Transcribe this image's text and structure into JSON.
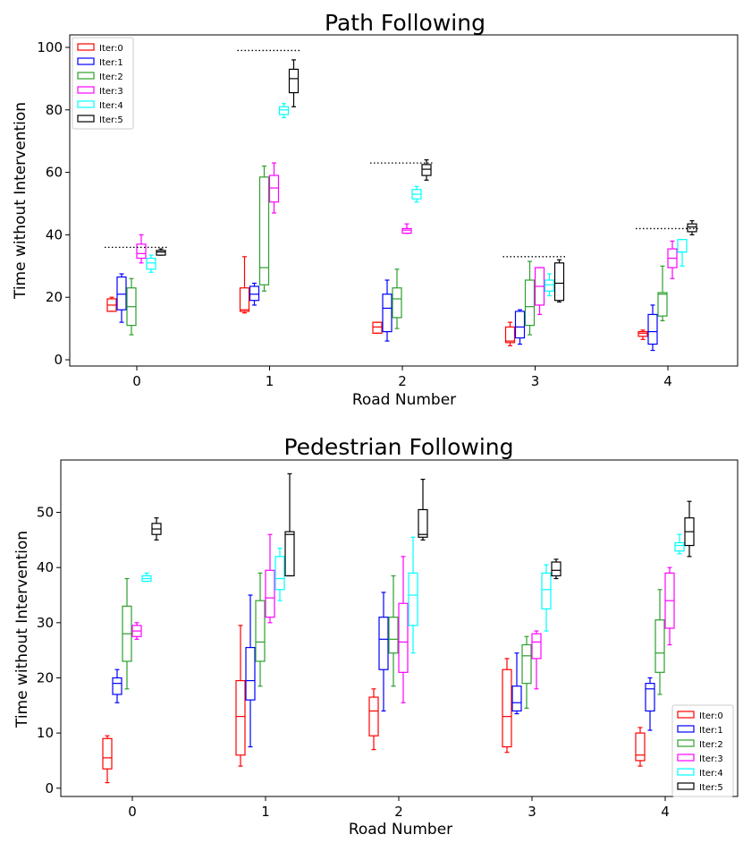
{
  "chart_data": [
    {
      "type": "box",
      "title": "Path Following",
      "xlabel": "Road Number",
      "ylabel": "Time without Intervention",
      "categories": [
        "0",
        "1",
        "2",
        "3",
        "4"
      ],
      "yticks": [
        0,
        20,
        40,
        60,
        80,
        100
      ],
      "ylim": [
        -2,
        104
      ],
      "legend_position": "upper-left",
      "series": [
        {
          "name": "Iter:0",
          "color": "#ff0000",
          "boxes": [
            {
              "min": 15.5,
              "q1": 15.5,
              "median": 17.5,
              "q3": 19.5,
              "max": 20
            },
            {
              "min": 15,
              "q1": 15.5,
              "median": 16,
              "q3": 23,
              "max": 33
            },
            {
              "min": 8.5,
              "q1": 8.5,
              "median": 10.5,
              "q3": 12,
              "max": 12
            },
            {
              "min": 4.5,
              "q1": 5.5,
              "median": 6,
              "q3": 10.5,
              "max": 12
            },
            {
              "min": 6.5,
              "q1": 7.5,
              "median": 8.5,
              "q3": 9,
              "max": 9.5
            }
          ]
        },
        {
          "name": "Iter:1",
          "color": "#0000ff",
          "boxes": [
            {
              "min": 12,
              "q1": 16,
              "median": 21,
              "q3": 26.5,
              "max": 27.5
            },
            {
              "min": 17.5,
              "q1": 19,
              "median": 21,
              "q3": 23.5,
              "max": 24.5
            },
            {
              "min": 6,
              "q1": 9,
              "median": 16.5,
              "q3": 21,
              "max": 25.5
            },
            {
              "min": 5,
              "q1": 7,
              "median": 10.5,
              "q3": 15.5,
              "max": 16
            },
            {
              "min": 3,
              "q1": 5,
              "median": 9,
              "q3": 14.5,
              "max": 17.5
            }
          ]
        },
        {
          "name": "Iter:2",
          "color": "#2ca02c",
          "boxes": [
            {
              "min": 8,
              "q1": 11,
              "median": 17,
              "q3": 23,
              "max": 26
            },
            {
              "min": 22,
              "q1": 24,
              "median": 29.5,
              "q3": 58.5,
              "max": 62
            },
            {
              "min": 10,
              "q1": 13.5,
              "median": 19.5,
              "q3": 23,
              "max": 29
            },
            {
              "min": 8,
              "q1": 11,
              "median": 17,
              "q3": 25.5,
              "max": 31.5
            },
            {
              "min": 12.5,
              "q1": 14,
              "median": 21,
              "q3": 21.5,
              "max": 30
            }
          ]
        },
        {
          "name": "Iter:3",
          "color": "#ff00ff",
          "boxes": [
            {
              "min": 31,
              "q1": 32.5,
              "median": 34,
              "q3": 37,
              "max": 40
            },
            {
              "min": 47,
              "q1": 50.5,
              "median": 55,
              "q3": 59,
              "max": 63
            },
            {
              "min": 40.5,
              "q1": 40.5,
              "median": 41.5,
              "q3": 42,
              "max": 43.5
            },
            {
              "min": 14.5,
              "q1": 17.5,
              "median": 23.5,
              "q3": 29.5,
              "max": 29.5
            },
            {
              "min": 26,
              "q1": 29.5,
              "median": 32.5,
              "q3": 35.5,
              "max": 38
            }
          ]
        },
        {
          "name": "Iter:4",
          "color": "#00ffff",
          "boxes": [
            {
              "min": 28,
              "q1": 29,
              "median": 31,
              "q3": 32.5,
              "max": 33.5
            },
            {
              "min": 77.5,
              "q1": 78.5,
              "median": 80,
              "q3": 81,
              "max": 82
            },
            {
              "min": 50.5,
              "q1": 51.5,
              "median": 53,
              "q3": 54.5,
              "max": 55.5
            },
            {
              "min": 20.5,
              "q1": 22,
              "median": 24,
              "q3": 25.5,
              "max": 27.5
            },
            {
              "min": 30,
              "q1": 34.5,
              "median": 34.5,
              "q3": 38.5,
              "max": 38.5
            }
          ]
        },
        {
          "name": "Iter:5",
          "color": "#000000",
          "boxes": [
            {
              "min": 33.5,
              "q1": 33.5,
              "median": 34.5,
              "q3": 35,
              "max": 35.5
            },
            {
              "min": 81,
              "q1": 85.5,
              "median": 90,
              "q3": 93,
              "max": 96
            },
            {
              "min": 57.5,
              "q1": 59,
              "median": 61,
              "q3": 62.5,
              "max": 64
            },
            {
              "min": 18.5,
              "q1": 19,
              "median": 24.5,
              "q3": 31,
              "max": 32
            },
            {
              "min": 40,
              "q1": 41,
              "median": 42.5,
              "q3": 43.5,
              "max": 44.5
            }
          ]
        }
      ],
      "reference_lines": [
        {
          "category": "0",
          "y": 36
        },
        {
          "category": "1",
          "y": 99
        },
        {
          "category": "2",
          "y": 63
        },
        {
          "category": "3",
          "y": 33
        },
        {
          "category": "4",
          "y": 42
        }
      ]
    },
    {
      "type": "box",
      "title": "Pedestrian Following",
      "xlabel": "Road Number",
      "ylabel": "Time without Intervention",
      "categories": [
        "0",
        "1",
        "2",
        "3",
        "4"
      ],
      "yticks": [
        0,
        10,
        20,
        30,
        40,
        50
      ],
      "ylim": [
        -1.5,
        59.5
      ],
      "legend_position": "lower-right",
      "series": [
        {
          "name": "Iter:0",
          "color": "#ff0000",
          "boxes": [
            {
              "min": 1,
              "q1": 3.5,
              "median": 5.5,
              "q3": 9,
              "max": 9.5
            },
            {
              "min": 4,
              "q1": 6,
              "median": 13,
              "q3": 19.5,
              "max": 29.5
            },
            {
              "min": 7,
              "q1": 9.5,
              "median": 14,
              "q3": 16.5,
              "max": 18
            },
            {
              "min": 6.5,
              "q1": 7.5,
              "median": 13,
              "q3": 21.5,
              "max": 23.5
            },
            {
              "min": 4,
              "q1": 5,
              "median": 6,
              "q3": 10,
              "max": 11
            }
          ]
        },
        {
          "name": "Iter:1",
          "color": "#0000ff",
          "boxes": [
            {
              "min": 15.5,
              "q1": 17,
              "median": 19,
              "q3": 20,
              "max": 21.5
            },
            {
              "min": 7.5,
              "q1": 16,
              "median": 19.5,
              "q3": 25.5,
              "max": 35
            },
            {
              "min": 14,
              "q1": 21.5,
              "median": 27,
              "q3": 31,
              "max": 35.5
            },
            {
              "min": 13.5,
              "q1": 14,
              "median": 15.5,
              "q3": 18.5,
              "max": 24.5
            },
            {
              "min": 10.5,
              "q1": 14,
              "median": 18,
              "q3": 19,
              "max": 20
            }
          ]
        },
        {
          "name": "Iter:2",
          "color": "#2ca02c",
          "boxes": [
            {
              "min": 18,
              "q1": 23,
              "median": 28,
              "q3": 33,
              "max": 38
            },
            {
              "min": 18.5,
              "q1": 23,
              "median": 26.5,
              "q3": 34,
              "max": 39
            },
            {
              "min": 18.5,
              "q1": 24.5,
              "median": 27,
              "q3": 31,
              "max": 38.5
            },
            {
              "min": 14.5,
              "q1": 19,
              "median": 24,
              "q3": 26,
              "max": 27.5
            },
            {
              "min": 17,
              "q1": 21,
              "median": 24.5,
              "q3": 30.5,
              "max": 36
            }
          ]
        },
        {
          "name": "Iter:3",
          "color": "#ff00ff",
          "boxes": [
            {
              "min": 27,
              "q1": 27.5,
              "median": 28.5,
              "q3": 29.5,
              "max": 30
            },
            {
              "min": 30,
              "q1": 31,
              "median": 34.5,
              "q3": 39.5,
              "max": 46
            },
            {
              "min": 15.5,
              "q1": 21,
              "median": 26.5,
              "q3": 33.5,
              "max": 42
            },
            {
              "min": 18,
              "q1": 23.5,
              "median": 26.5,
              "q3": 28,
              "max": 28.5
            },
            {
              "min": 26,
              "q1": 29,
              "median": 34,
              "q3": 39,
              "max": 40
            }
          ]
        },
        {
          "name": "Iter:4",
          "color": "#00ffff",
          "boxes": [
            {
              "min": 37.5,
              "q1": 37.5,
              "median": 38,
              "q3": 38.5,
              "max": 39
            },
            {
              "min": 34,
              "q1": 36,
              "median": 38,
              "q3": 42,
              "max": 43.5
            },
            {
              "min": 24.5,
              "q1": 29.5,
              "median": 35,
              "q3": 39,
              "max": 45.5
            },
            {
              "min": 28.5,
              "q1": 32.5,
              "median": 36,
              "q3": 39,
              "max": 40.5
            },
            {
              "min": 42.5,
              "q1": 43,
              "median": 44,
              "q3": 44.5,
              "max": 46
            }
          ]
        },
        {
          "name": "Iter:5",
          "color": "#000000",
          "boxes": [
            {
              "min": 45,
              "q1": 46,
              "median": 47,
              "q3": 48,
              "max": 49
            },
            {
              "min": 38.5,
              "q1": 38.5,
              "median": 46,
              "q3": 46.5,
              "max": 57
            },
            {
              "min": 45,
              "q1": 45.5,
              "median": 46,
              "q3": 50.5,
              "max": 56
            },
            {
              "min": 38,
              "q1": 38.5,
              "median": 39.5,
              "q3": 41,
              "max": 41.5
            },
            {
              "min": 42,
              "q1": 44,
              "median": 46.5,
              "q3": 49,
              "max": 52
            }
          ]
        }
      ]
    }
  ]
}
